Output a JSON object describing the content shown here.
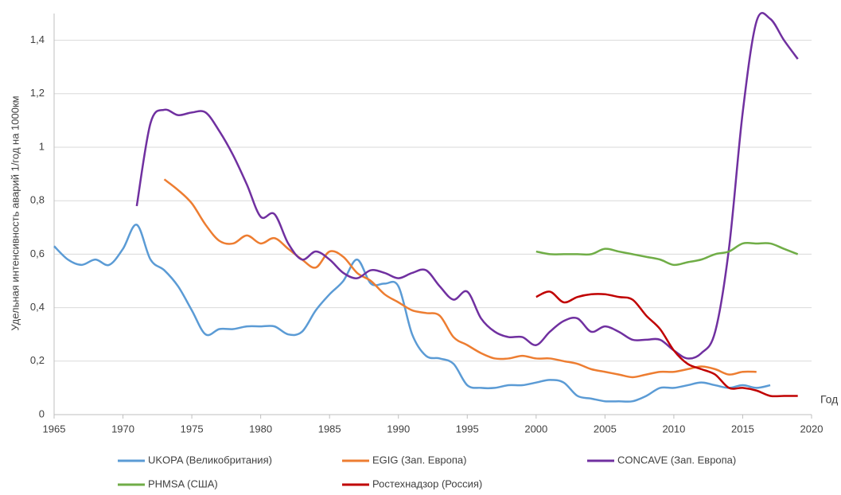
{
  "chart_data": {
    "type": "line",
    "ylabel": "Удельная интенсивность аварий 1/год на 1000км",
    "xlabel": "Год",
    "x": [
      1965,
      1966,
      1967,
      1968,
      1969,
      1970,
      1971,
      1972,
      1973,
      1974,
      1975,
      1976,
      1977,
      1978,
      1979,
      1980,
      1981,
      1982,
      1983,
      1984,
      1985,
      1986,
      1987,
      1988,
      1989,
      1990,
      1991,
      1992,
      1993,
      1994,
      1995,
      1996,
      1997,
      1998,
      1999,
      2000,
      2001,
      2002,
      2003,
      2004,
      2005,
      2006,
      2007,
      2008,
      2009,
      2010,
      2011,
      2012,
      2013,
      2014,
      2015,
      2016,
      2017,
      2018,
      2019
    ],
    "xlim": [
      1965,
      2020
    ],
    "xticks": [
      1965,
      1970,
      1975,
      1980,
      1985,
      1990,
      1995,
      2000,
      2005,
      2010,
      2015,
      2020
    ],
    "ylim": [
      0,
      1.5
    ],
    "yticks": [
      0,
      {
        "value": 0.2,
        "label": "0,2"
      },
      {
        "value": 0.4,
        "label": "0,4"
      },
      {
        "value": 0.6,
        "label": "0,6"
      },
      {
        "value": 0.8,
        "label": "0,8"
      },
      1,
      {
        "value": 1.2,
        "label": "1,2"
      },
      {
        "value": 1.4,
        "label": "1,4"
      }
    ],
    "grid": true,
    "legend": "bottom",
    "series": [
      {
        "name": "UKOPA (Великобритания)",
        "color": "#5b9bd5",
        "values": [
          0.63,
          0.58,
          0.56,
          0.58,
          0.56,
          0.62,
          0.71,
          0.58,
          0.54,
          0.48,
          0.39,
          0.3,
          0.32,
          0.32,
          0.33,
          0.33,
          0.33,
          0.3,
          0.31,
          0.39,
          0.45,
          0.5,
          0.58,
          0.49,
          0.49,
          0.48,
          0.3,
          0.22,
          0.21,
          0.19,
          0.11,
          0.1,
          0.1,
          0.11,
          0.11,
          0.12,
          0.13,
          0.12,
          0.07,
          0.06,
          0.05,
          0.05,
          0.05,
          0.07,
          0.1,
          0.1,
          0.11,
          0.12,
          0.11,
          0.1,
          0.11,
          0.1,
          0.11,
          null,
          null
        ]
      },
      {
        "name": "EGIG (Зап. Европа)",
        "color": "#ed7d31",
        "values": [
          null,
          null,
          null,
          null,
          null,
          null,
          null,
          null,
          0.88,
          0.84,
          0.79,
          0.71,
          0.65,
          0.64,
          0.67,
          0.64,
          0.66,
          0.62,
          0.58,
          0.55,
          0.61,
          0.59,
          0.53,
          0.5,
          0.45,
          0.42,
          0.39,
          0.38,
          0.37,
          0.29,
          0.26,
          0.23,
          0.21,
          0.21,
          0.22,
          0.21,
          0.21,
          0.2,
          0.19,
          0.17,
          0.16,
          0.15,
          0.14,
          0.15,
          0.16,
          0.16,
          0.17,
          0.18,
          0.17,
          0.15,
          0.16,
          0.16,
          null,
          null,
          null
        ]
      },
      {
        "name": "CONCAVE (Зап. Европа)",
        "color": "#7030a0",
        "values": [
          null,
          null,
          null,
          null,
          null,
          null,
          0.78,
          1.09,
          1.14,
          1.12,
          1.13,
          1.13,
          1.06,
          0.97,
          0.86,
          0.74,
          0.75,
          0.64,
          0.58,
          0.61,
          0.58,
          0.53,
          0.51,
          0.54,
          0.53,
          0.51,
          0.53,
          0.54,
          0.48,
          0.43,
          0.46,
          0.36,
          0.31,
          0.29,
          0.29,
          0.26,
          0.31,
          0.35,
          0.36,
          0.31,
          0.33,
          0.31,
          0.28,
          0.28,
          0.28,
          0.24,
          0.21,
          0.23,
          0.31,
          0.62,
          1.13,
          1.47,
          1.48,
          1.4,
          1.33
        ]
      },
      {
        "name": "PHMSA (США)",
        "color": "#70ad47",
        "values": [
          null,
          null,
          null,
          null,
          null,
          null,
          null,
          null,
          null,
          null,
          null,
          null,
          null,
          null,
          null,
          null,
          null,
          null,
          null,
          null,
          null,
          null,
          null,
          null,
          null,
          null,
          null,
          null,
          null,
          null,
          null,
          null,
          null,
          null,
          null,
          0.61,
          0.6,
          0.6,
          0.6,
          0.6,
          0.62,
          0.61,
          0.6,
          0.59,
          0.58,
          0.56,
          0.57,
          0.58,
          0.6,
          0.61,
          0.64,
          0.64,
          0.64,
          0.62,
          0.6
        ]
      },
      {
        "name": "Ростехнадзор (Россия)",
        "color": "#c00000",
        "values": [
          null,
          null,
          null,
          null,
          null,
          null,
          null,
          null,
          null,
          null,
          null,
          null,
          null,
          null,
          null,
          null,
          null,
          null,
          null,
          null,
          null,
          null,
          null,
          null,
          null,
          null,
          null,
          null,
          null,
          null,
          null,
          null,
          null,
          null,
          null,
          0.44,
          0.46,
          0.42,
          0.44,
          0.45,
          0.45,
          0.44,
          0.43,
          0.37,
          0.32,
          0.24,
          0.19,
          0.17,
          0.15,
          0.1,
          0.1,
          0.09,
          0.07,
          0.07,
          0.07
        ]
      }
    ]
  }
}
